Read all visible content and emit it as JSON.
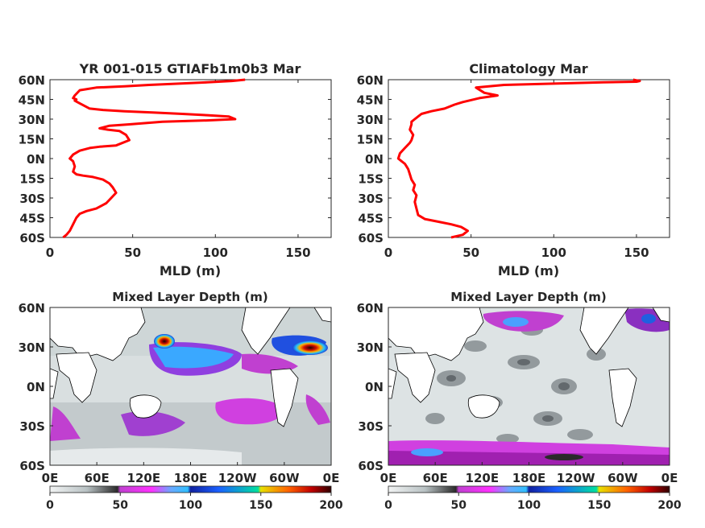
{
  "chart_data": [
    {
      "type": "line",
      "title": "YR 001-015 GTIAFb1m0b3 Mar",
      "xlabel": "MLD (m)",
      "ylabel": "",
      "xlim": [
        0,
        170
      ],
      "ylim": [
        -60,
        60
      ],
      "xticks": [
        "0",
        "50",
        "100",
        "150"
      ],
      "yticks": [
        "60N",
        "45N",
        "30N",
        "15N",
        "0N",
        "15S",
        "30S",
        "45S",
        "60S"
      ],
      "color": "#ff0000",
      "series": [
        {
          "x": [
            8,
            10,
            12,
            14,
            16,
            18,
            22,
            28,
            34,
            37,
            40,
            38,
            36,
            32,
            26,
            20,
            16,
            14,
            15,
            14,
            12,
            14,
            18,
            24,
            30,
            40,
            48,
            46,
            42,
            35,
            30,
            36,
            48,
            68,
            95,
            112,
            108,
            95,
            80,
            62,
            45,
            32,
            24,
            18,
            15,
            16,
            14,
            15,
            18,
            28,
            45,
            60,
            78,
            95,
            110,
            118
          ],
          "y": [
            -60,
            -58,
            -55,
            -50,
            -45,
            -42,
            -40,
            -38,
            -34,
            -30,
            -26,
            -22,
            -19,
            -16,
            -14,
            -13,
            -12,
            -10,
            -6,
            -2,
            0,
            3,
            6,
            8,
            9,
            10,
            14,
            18,
            21,
            22,
            23,
            25,
            26,
            28,
            29,
            30,
            32,
            33,
            34,
            35,
            36,
            37,
            38,
            42,
            44,
            45,
            46,
            48,
            52,
            54,
            55,
            56,
            57,
            58,
            59,
            60
          ]
        }
      ]
    },
    {
      "type": "line",
      "title": "Climatology Mar",
      "xlabel": "MLD (m)",
      "ylabel": "",
      "xlim": [
        0,
        170
      ],
      "ylim": [
        -60,
        60
      ],
      "xticks": [
        "0",
        "50",
        "100",
        "150"
      ],
      "yticks": [
        "60N",
        "45N",
        "30N",
        "15N",
        "0N",
        "15S",
        "30S",
        "45S",
        "60S"
      ],
      "color": "#ff0000",
      "series": [
        {
          "x": [
            38,
            45,
            48,
            44,
            38,
            30,
            22,
            18,
            17,
            16,
            17,
            15,
            16,
            14,
            13,
            12,
            11,
            10,
            8,
            6,
            7,
            10,
            13,
            14,
            15,
            13,
            14,
            14,
            16,
            18,
            20,
            26,
            34,
            40,
            45,
            55,
            66,
            58,
            53,
            70,
            100,
            130,
            150,
            152,
            150,
            148
          ],
          "y": [
            -60,
            -58,
            -55,
            -52,
            -50,
            -48,
            -46,
            -43,
            -38,
            -33,
            -28,
            -24,
            -20,
            -16,
            -12,
            -8,
            -6,
            -4,
            -2,
            0,
            4,
            8,
            12,
            14,
            18,
            22,
            26,
            28,
            30,
            32,
            34,
            36,
            38,
            41,
            43,
            46,
            48,
            50,
            54,
            56,
            57,
            58,
            58.5,
            59,
            59.5,
            60
          ]
        }
      ]
    },
    {
      "type": "heatmap",
      "title": "Mixed Layer Depth (m)",
      "xticks": [
        "0E",
        "60E",
        "120E",
        "180E",
        "120W",
        "60W",
        "0E"
      ],
      "yticks": [
        "60N",
        "30N",
        "0N",
        "30S",
        "60S"
      ],
      "colorbar": {
        "ticks": [
          "0",
          "50",
          "100",
          "150",
          "200"
        ],
        "range": [
          0,
          200
        ]
      }
    },
    {
      "type": "heatmap",
      "title": "Mixed Layer Depth (m)",
      "xticks": [
        "0E",
        "60E",
        "120E",
        "180E",
        "120W",
        "60W",
        "0E"
      ],
      "yticks": [
        "60N",
        "30N",
        "0N",
        "30S",
        "60S"
      ],
      "colorbar": {
        "ticks": [
          "0",
          "50",
          "100",
          "150",
          "200"
        ],
        "range": [
          0,
          200
        ]
      }
    }
  ]
}
